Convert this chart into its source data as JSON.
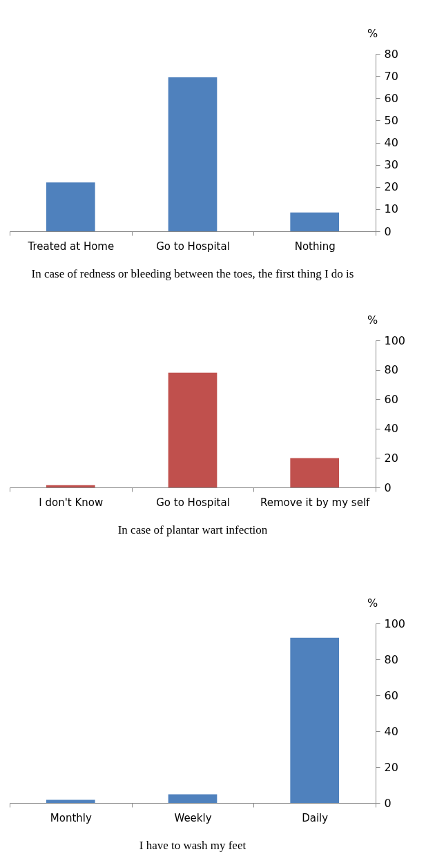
{
  "chart_data": [
    {
      "type": "bar",
      "title": "In case of redness or bleeding between the toes, the first thing I do is",
      "ylabel": "%",
      "categories": [
        "Treated at Home",
        "Go to Hospital",
        "Nothing"
      ],
      "values": [
        22,
        69.4,
        8.5
      ],
      "color": "#4f81bd",
      "ylim": [
        0,
        80
      ],
      "yticks": [
        0,
        10,
        20,
        30,
        40,
        50,
        60,
        70,
        80
      ]
    },
    {
      "type": "bar",
      "title": "In case of plantar wart infection",
      "ylabel": "%",
      "categories": [
        "I don't Know",
        "Go to Hospital",
        "Remove it by my self"
      ],
      "values": [
        1.5,
        78,
        20
      ],
      "color": "#c0504d",
      "ylim": [
        0,
        100
      ],
      "yticks": [
        0,
        20,
        40,
        60,
        80,
        100
      ]
    },
    {
      "type": "bar",
      "title": "I have to wash my feet",
      "ylabel": "%",
      "categories": [
        "Monthly",
        "Weekly",
        "Daily"
      ],
      "values": [
        1.7,
        4.8,
        92
      ],
      "color": "#4f81bd",
      "ylim": [
        0,
        100
      ],
      "yticks": [
        0,
        20,
        40,
        60,
        80,
        100
      ]
    }
  ]
}
